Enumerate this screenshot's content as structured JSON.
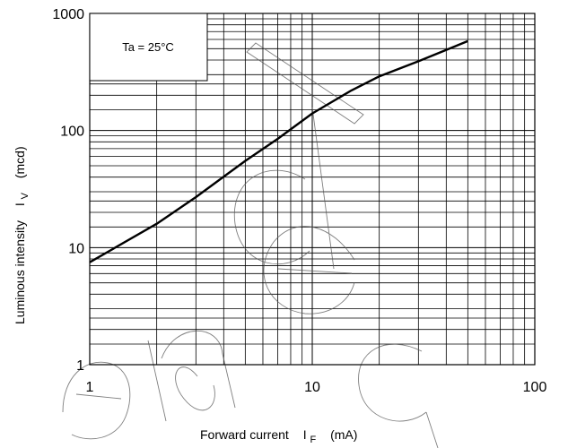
{
  "chart_data": {
    "type": "line",
    "xscale": "log",
    "yscale": "log",
    "xlim": [
      1,
      100
    ],
    "ylim": [
      1,
      1000
    ],
    "x_ticks": [
      "1",
      "10",
      "100"
    ],
    "y_ticks": [
      "1",
      "10",
      "100",
      "1000"
    ],
    "xlabel": "Forward current",
    "xlabel_symbol": "I",
    "xlabel_subscript": "F",
    "xlabel_unit": "(mA)",
    "ylabel": "Luminous intensity",
    "ylabel_symbol": "I",
    "ylabel_subscript": "V",
    "ylabel_unit": "(mcd)",
    "annotation": "Ta = 25°C",
    "grid": true,
    "line_color": "#000000",
    "series": [
      {
        "x": [
          1,
          2,
          3,
          5,
          7,
          10,
          15,
          20,
          30,
          50
        ],
        "values": [
          7.5,
          16,
          27,
          55,
          85,
          140,
          220,
          290,
          390,
          580
        ]
      }
    ]
  }
}
